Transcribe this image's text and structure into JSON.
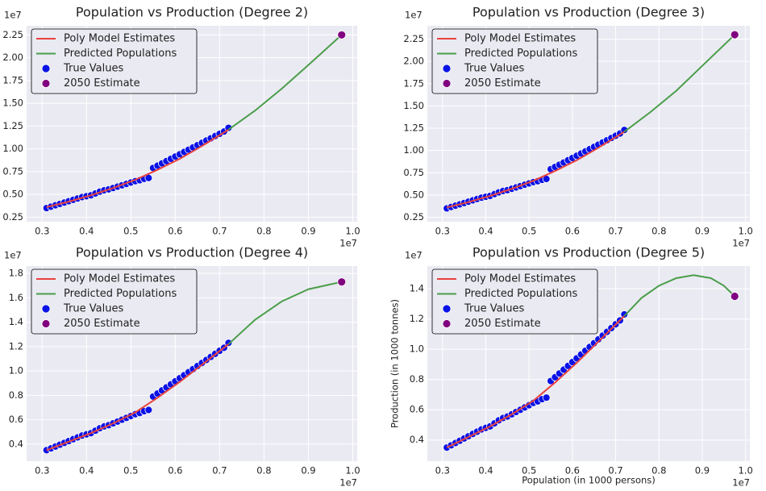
{
  "chart_data": [
    {
      "type": "scatter",
      "title": "Population vs Production (Degree 2)",
      "x_offset_label": "1e7",
      "y_offset_label": "1e7",
      "xlim": [
        0.265,
        1.01
      ],
      "ylim": [
        0.2,
        2.35
      ],
      "grid": true,
      "legend": "upper left",
      "xticks": [
        0.3,
        0.4,
        0.5,
        0.6,
        0.7,
        0.8,
        0.9,
        {
          "value": 1,
          "label": "1.0"
        }
      ],
      "yticks": [
        0.25,
        {
          "value": 0.5,
          "label": "0.50"
        },
        0.75,
        {
          "value": 1,
          "label": "1.00"
        },
        1.25,
        {
          "value": 1.5,
          "label": "1.50"
        },
        1.75,
        {
          "value": 2,
          "label": "2.00"
        },
        2.25
      ],
      "series": [
        {
          "name": "Poly Model Estimates",
          "kind": "line",
          "color": "#e8413e",
          "x": [
            0.31,
            0.36,
            0.41,
            0.46,
            0.51,
            0.56,
            0.61,
            0.66,
            0.72
          ],
          "values": [
            0.36,
            0.42,
            0.49,
            0.57,
            0.66,
            0.77,
            0.89,
            1.03,
            1.21
          ]
        },
        {
          "name": "Predicted Populations",
          "kind": "line",
          "color": "#4a9e4a",
          "x": [
            0.72,
            0.78,
            0.84,
            0.9,
            0.975
          ],
          "values": [
            1.21,
            1.42,
            1.66,
            1.92,
            2.25
          ]
        },
        {
          "name": "True Values",
          "kind": "scatter",
          "color": "#0a12e6",
          "x": [
            0.31,
            0.32,
            0.33,
            0.34,
            0.35,
            0.36,
            0.37,
            0.38,
            0.39,
            0.4,
            0.41,
            0.42,
            0.43,
            0.44,
            0.45,
            0.46,
            0.47,
            0.48,
            0.49,
            0.5,
            0.51,
            0.52,
            0.53,
            0.54,
            0.55,
            0.56,
            0.57,
            0.58,
            0.59,
            0.6,
            0.61,
            0.62,
            0.63,
            0.64,
            0.65,
            0.66,
            0.67,
            0.68,
            0.69,
            0.7,
            0.71,
            0.72
          ],
          "values": [
            0.35,
            0.365,
            0.38,
            0.395,
            0.41,
            0.425,
            0.44,
            0.455,
            0.47,
            0.48,
            0.49,
            0.51,
            0.53,
            0.545,
            0.555,
            0.57,
            0.585,
            0.6,
            0.615,
            0.63,
            0.645,
            0.655,
            0.67,
            0.68,
            0.79,
            0.815,
            0.84,
            0.865,
            0.89,
            0.915,
            0.94,
            0.965,
            0.99,
            1.015,
            1.04,
            1.065,
            1.09,
            1.115,
            1.14,
            1.165,
            1.19,
            1.23
          ]
        },
        {
          "name": "2050 Estimate",
          "kind": "scatter",
          "color": "#800080",
          "x": [
            0.975
          ],
          "values": [
            2.25
          ]
        }
      ]
    },
    {
      "type": "scatter",
      "title": "Population vs Production (Degree 3)",
      "x_offset_label": "1e7",
      "y_offset_label": "1e7",
      "xlim": [
        0.265,
        1.01
      ],
      "ylim": [
        0.2,
        2.4
      ],
      "grid": true,
      "legend": "upper left",
      "xticks": [
        0.3,
        0.4,
        0.5,
        0.6,
        0.7,
        0.8,
        0.9,
        {
          "value": 1,
          "label": "1.0"
        }
      ],
      "yticks": [
        0.25,
        {
          "value": 0.5,
          "label": "0.50"
        },
        0.75,
        {
          "value": 1,
          "label": "1.00"
        },
        1.25,
        {
          "value": 1.5,
          "label": "1.50"
        },
        1.75,
        {
          "value": 2,
          "label": "2.00"
        },
        2.25
      ],
      "series": [
        {
          "name": "Poly Model Estimates",
          "kind": "line",
          "color": "#e8413e",
          "x": [
            0.31,
            0.36,
            0.41,
            0.46,
            0.51,
            0.56,
            0.61,
            0.66,
            0.72
          ],
          "values": [
            0.36,
            0.42,
            0.49,
            0.57,
            0.66,
            0.77,
            0.89,
            1.03,
            1.21
          ]
        },
        {
          "name": "Predicted Populations",
          "kind": "line",
          "color": "#4a9e4a",
          "x": [
            0.72,
            0.78,
            0.84,
            0.9,
            0.975
          ],
          "values": [
            1.21,
            1.43,
            1.67,
            1.95,
            2.3
          ]
        },
        {
          "name": "True Values",
          "kind": "scatter",
          "color": "#0a12e6",
          "x": [
            0.31,
            0.32,
            0.33,
            0.34,
            0.35,
            0.36,
            0.37,
            0.38,
            0.39,
            0.4,
            0.41,
            0.42,
            0.43,
            0.44,
            0.45,
            0.46,
            0.47,
            0.48,
            0.49,
            0.5,
            0.51,
            0.52,
            0.53,
            0.54,
            0.55,
            0.56,
            0.57,
            0.58,
            0.59,
            0.6,
            0.61,
            0.62,
            0.63,
            0.64,
            0.65,
            0.66,
            0.67,
            0.68,
            0.69,
            0.7,
            0.71,
            0.72
          ],
          "values": [
            0.35,
            0.365,
            0.38,
            0.395,
            0.41,
            0.425,
            0.44,
            0.455,
            0.47,
            0.48,
            0.49,
            0.51,
            0.53,
            0.545,
            0.555,
            0.57,
            0.585,
            0.6,
            0.615,
            0.63,
            0.645,
            0.655,
            0.67,
            0.68,
            0.79,
            0.815,
            0.84,
            0.865,
            0.89,
            0.915,
            0.94,
            0.965,
            0.99,
            1.015,
            1.04,
            1.065,
            1.09,
            1.115,
            1.14,
            1.165,
            1.19,
            1.23
          ]
        },
        {
          "name": "2050 Estimate",
          "kind": "scatter",
          "color": "#800080",
          "x": [
            0.975
          ],
          "values": [
            2.3
          ]
        }
      ]
    },
    {
      "type": "scatter",
      "title": "Population vs Production (Degree 4)",
      "x_offset_label": "1e7",
      "y_offset_label": "1e7",
      "xlim": [
        0.265,
        1.01
      ],
      "ylim": [
        0.26,
        1.86
      ],
      "grid": true,
      "legend": "upper left",
      "xticks": [
        0.3,
        0.4,
        0.5,
        0.6,
        0.7,
        0.8,
        0.9,
        {
          "value": 1,
          "label": "1.0"
        }
      ],
      "yticks": [
        0.4,
        0.6,
        0.8,
        {
          "value": 1,
          "label": "1.0"
        },
        1.2,
        1.4,
        1.6,
        1.8
      ],
      "series": [
        {
          "name": "Poly Model Estimates",
          "kind": "line",
          "color": "#e8413e",
          "x": [
            0.31,
            0.36,
            0.41,
            0.46,
            0.51,
            0.56,
            0.61,
            0.66,
            0.72
          ],
          "values": [
            0.35,
            0.42,
            0.49,
            0.57,
            0.66,
            0.78,
            0.91,
            1.05,
            1.22
          ]
        },
        {
          "name": "Predicted Populations",
          "kind": "line",
          "color": "#4a9e4a",
          "x": [
            0.72,
            0.78,
            0.84,
            0.9,
            0.975
          ],
          "values": [
            1.22,
            1.42,
            1.57,
            1.67,
            1.73
          ]
        },
        {
          "name": "True Values",
          "kind": "scatter",
          "color": "#0a12e6",
          "x": [
            0.31,
            0.32,
            0.33,
            0.34,
            0.35,
            0.36,
            0.37,
            0.38,
            0.39,
            0.4,
            0.41,
            0.42,
            0.43,
            0.44,
            0.45,
            0.46,
            0.47,
            0.48,
            0.49,
            0.5,
            0.51,
            0.52,
            0.53,
            0.54,
            0.55,
            0.56,
            0.57,
            0.58,
            0.59,
            0.6,
            0.61,
            0.62,
            0.63,
            0.64,
            0.65,
            0.66,
            0.67,
            0.68,
            0.69,
            0.7,
            0.71,
            0.72
          ],
          "values": [
            0.35,
            0.365,
            0.38,
            0.395,
            0.41,
            0.425,
            0.44,
            0.455,
            0.47,
            0.48,
            0.49,
            0.51,
            0.53,
            0.545,
            0.555,
            0.57,
            0.585,
            0.6,
            0.615,
            0.63,
            0.645,
            0.655,
            0.67,
            0.68,
            0.79,
            0.815,
            0.84,
            0.865,
            0.89,
            0.915,
            0.94,
            0.965,
            0.99,
            1.015,
            1.04,
            1.065,
            1.09,
            1.115,
            1.14,
            1.165,
            1.19,
            1.23
          ]
        },
        {
          "name": "2050 Estimate",
          "kind": "scatter",
          "color": "#800080",
          "x": [
            0.975
          ],
          "values": [
            1.73
          ]
        }
      ]
    },
    {
      "type": "scatter",
      "title": "Population vs Production (Degree 5)",
      "x_offset_label": "1e7",
      "y_offset_label": "1e7",
      "xlabel": "Population (in 1000 persons)",
      "ylabel": "Production (in 1000 tonnes)",
      "xlim": [
        0.265,
        1.01
      ],
      "ylim": [
        0.26,
        1.55
      ],
      "grid": true,
      "legend": "upper left",
      "xticks": [
        0.3,
        0.4,
        0.5,
        0.6,
        0.7,
        0.8,
        0.9,
        {
          "value": 1,
          "label": "1.0"
        }
      ],
      "yticks": [
        0.4,
        0.6,
        0.8,
        {
          "value": 1,
          "label": "1.0"
        },
        1.2,
        1.4
      ],
      "series": [
        {
          "name": "Poly Model Estimates",
          "kind": "line",
          "color": "#e8413e",
          "x": [
            0.31,
            0.36,
            0.41,
            0.46,
            0.51,
            0.56,
            0.61,
            0.66,
            0.72
          ],
          "values": [
            0.35,
            0.42,
            0.49,
            0.57,
            0.66,
            0.78,
            0.91,
            1.05,
            1.22
          ]
        },
        {
          "name": "Predicted Populations",
          "kind": "line",
          "color": "#4a9e4a",
          "x": [
            0.72,
            0.76,
            0.8,
            0.84,
            0.88,
            0.92,
            0.95,
            0.975
          ],
          "values": [
            1.22,
            1.34,
            1.42,
            1.47,
            1.49,
            1.47,
            1.42,
            1.35
          ]
        },
        {
          "name": "True Values",
          "kind": "scatter",
          "color": "#0a12e6",
          "x": [
            0.31,
            0.32,
            0.33,
            0.34,
            0.35,
            0.36,
            0.37,
            0.38,
            0.39,
            0.4,
            0.41,
            0.42,
            0.43,
            0.44,
            0.45,
            0.46,
            0.47,
            0.48,
            0.49,
            0.5,
            0.51,
            0.52,
            0.53,
            0.54,
            0.55,
            0.56,
            0.57,
            0.58,
            0.59,
            0.6,
            0.61,
            0.62,
            0.63,
            0.64,
            0.65,
            0.66,
            0.67,
            0.68,
            0.69,
            0.7,
            0.71,
            0.72
          ],
          "values": [
            0.35,
            0.365,
            0.38,
            0.395,
            0.41,
            0.425,
            0.44,
            0.455,
            0.47,
            0.48,
            0.49,
            0.51,
            0.53,
            0.545,
            0.555,
            0.57,
            0.585,
            0.6,
            0.615,
            0.63,
            0.645,
            0.655,
            0.67,
            0.68,
            0.79,
            0.815,
            0.84,
            0.865,
            0.89,
            0.915,
            0.94,
            0.965,
            0.99,
            1.015,
            1.04,
            1.065,
            1.09,
            1.115,
            1.14,
            1.165,
            1.19,
            1.23
          ]
        },
        {
          "name": "2050 Estimate",
          "kind": "scatter",
          "color": "#800080",
          "x": [
            0.975
          ],
          "values": [
            1.35
          ]
        }
      ]
    }
  ]
}
